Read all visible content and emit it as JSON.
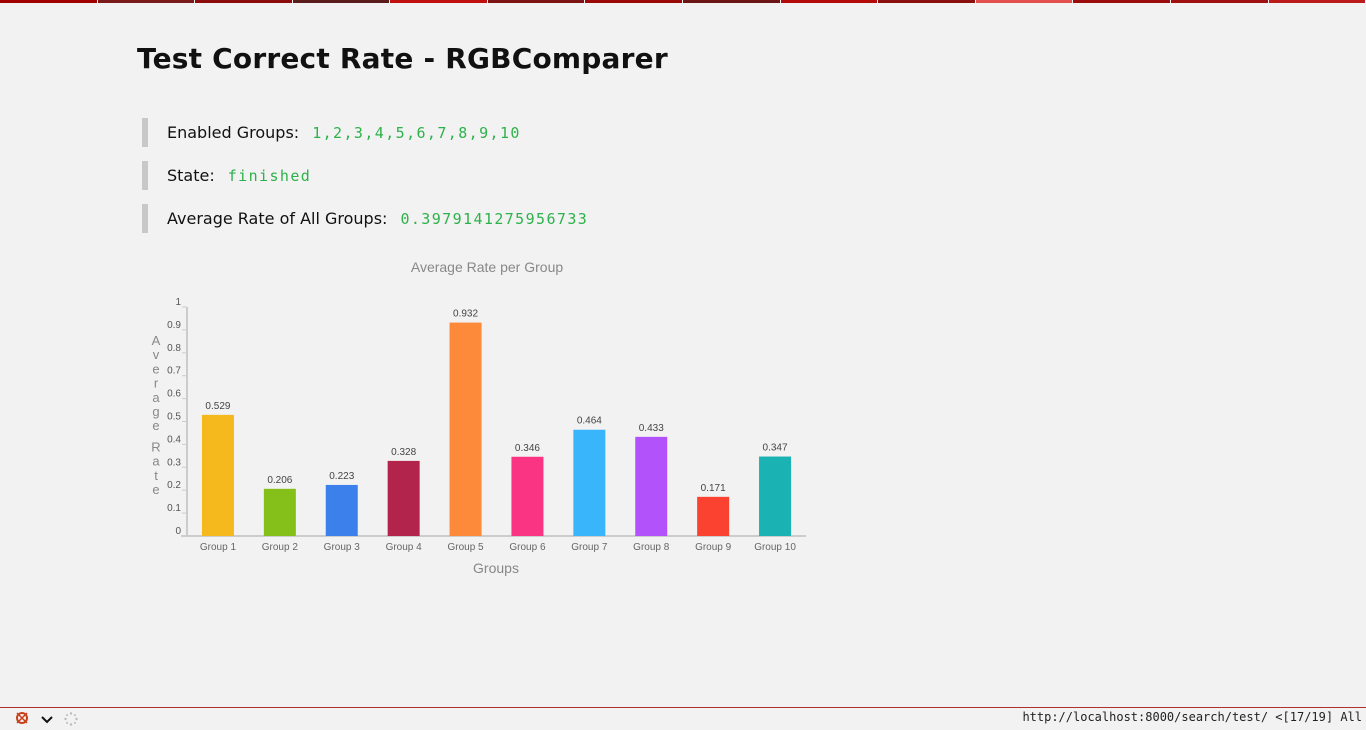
{
  "page": {
    "title": "Test Correct Rate - RGBComparer"
  },
  "info": {
    "enabled_groups_label": "Enabled Groups:",
    "enabled_groups_value": "1,2,3,4,5,6,7,8,9,10",
    "state_label": "State:",
    "state_value": "finished",
    "average_label": "Average Rate of All Groups:",
    "average_value": "0.3979141275956733"
  },
  "status_bar": {
    "url": "http://localhost:8000/search/test/ <[17/19] All"
  },
  "colors": {
    "value_green": "#2db24a",
    "top_bar": [
      "#a00000",
      "#7a1a1a",
      "#8c0c0c",
      "#5a1c1c",
      "#c01010",
      "#7c1414",
      "#9a0808",
      "#6b1515",
      "#b40a0a",
      "#8a1010",
      "#e45050",
      "#9c0c0c",
      "#a01010",
      "#bb1b1b"
    ]
  },
  "chart_data": {
    "type": "bar",
    "title": "Average Rate per Group",
    "xlabel": "Groups",
    "ylabel": "Average Rate",
    "ylim": [
      0,
      1
    ],
    "yticks": [
      "0",
      "0.1",
      "0.2",
      "0.3",
      "0.4",
      "0.5",
      "0.6",
      "0.7",
      "0.8",
      "0.9",
      "1"
    ],
    "categories": [
      "Group 1",
      "Group 2",
      "Group 3",
      "Group 4",
      "Group 5",
      "Group 6",
      "Group 7",
      "Group 8",
      "Group 9",
      "Group 10"
    ],
    "values": [
      0.529,
      0.206,
      0.223,
      0.328,
      0.932,
      0.346,
      0.464,
      0.433,
      0.171,
      0.347
    ],
    "value_labels": [
      "0.529",
      "0.206",
      "0.223",
      "0.328",
      "0.932",
      "0.346",
      "0.464",
      "0.433",
      "0.171",
      "0.347"
    ],
    "bar_colors": [
      "#f5b91d",
      "#85bf1a",
      "#3b80eb",
      "#b3244c",
      "#fd8a3a",
      "#fb3383",
      "#38b5fb",
      "#b152fb",
      "#fb4230",
      "#1bb2b4"
    ],
    "grid": false,
    "legend": "none"
  }
}
